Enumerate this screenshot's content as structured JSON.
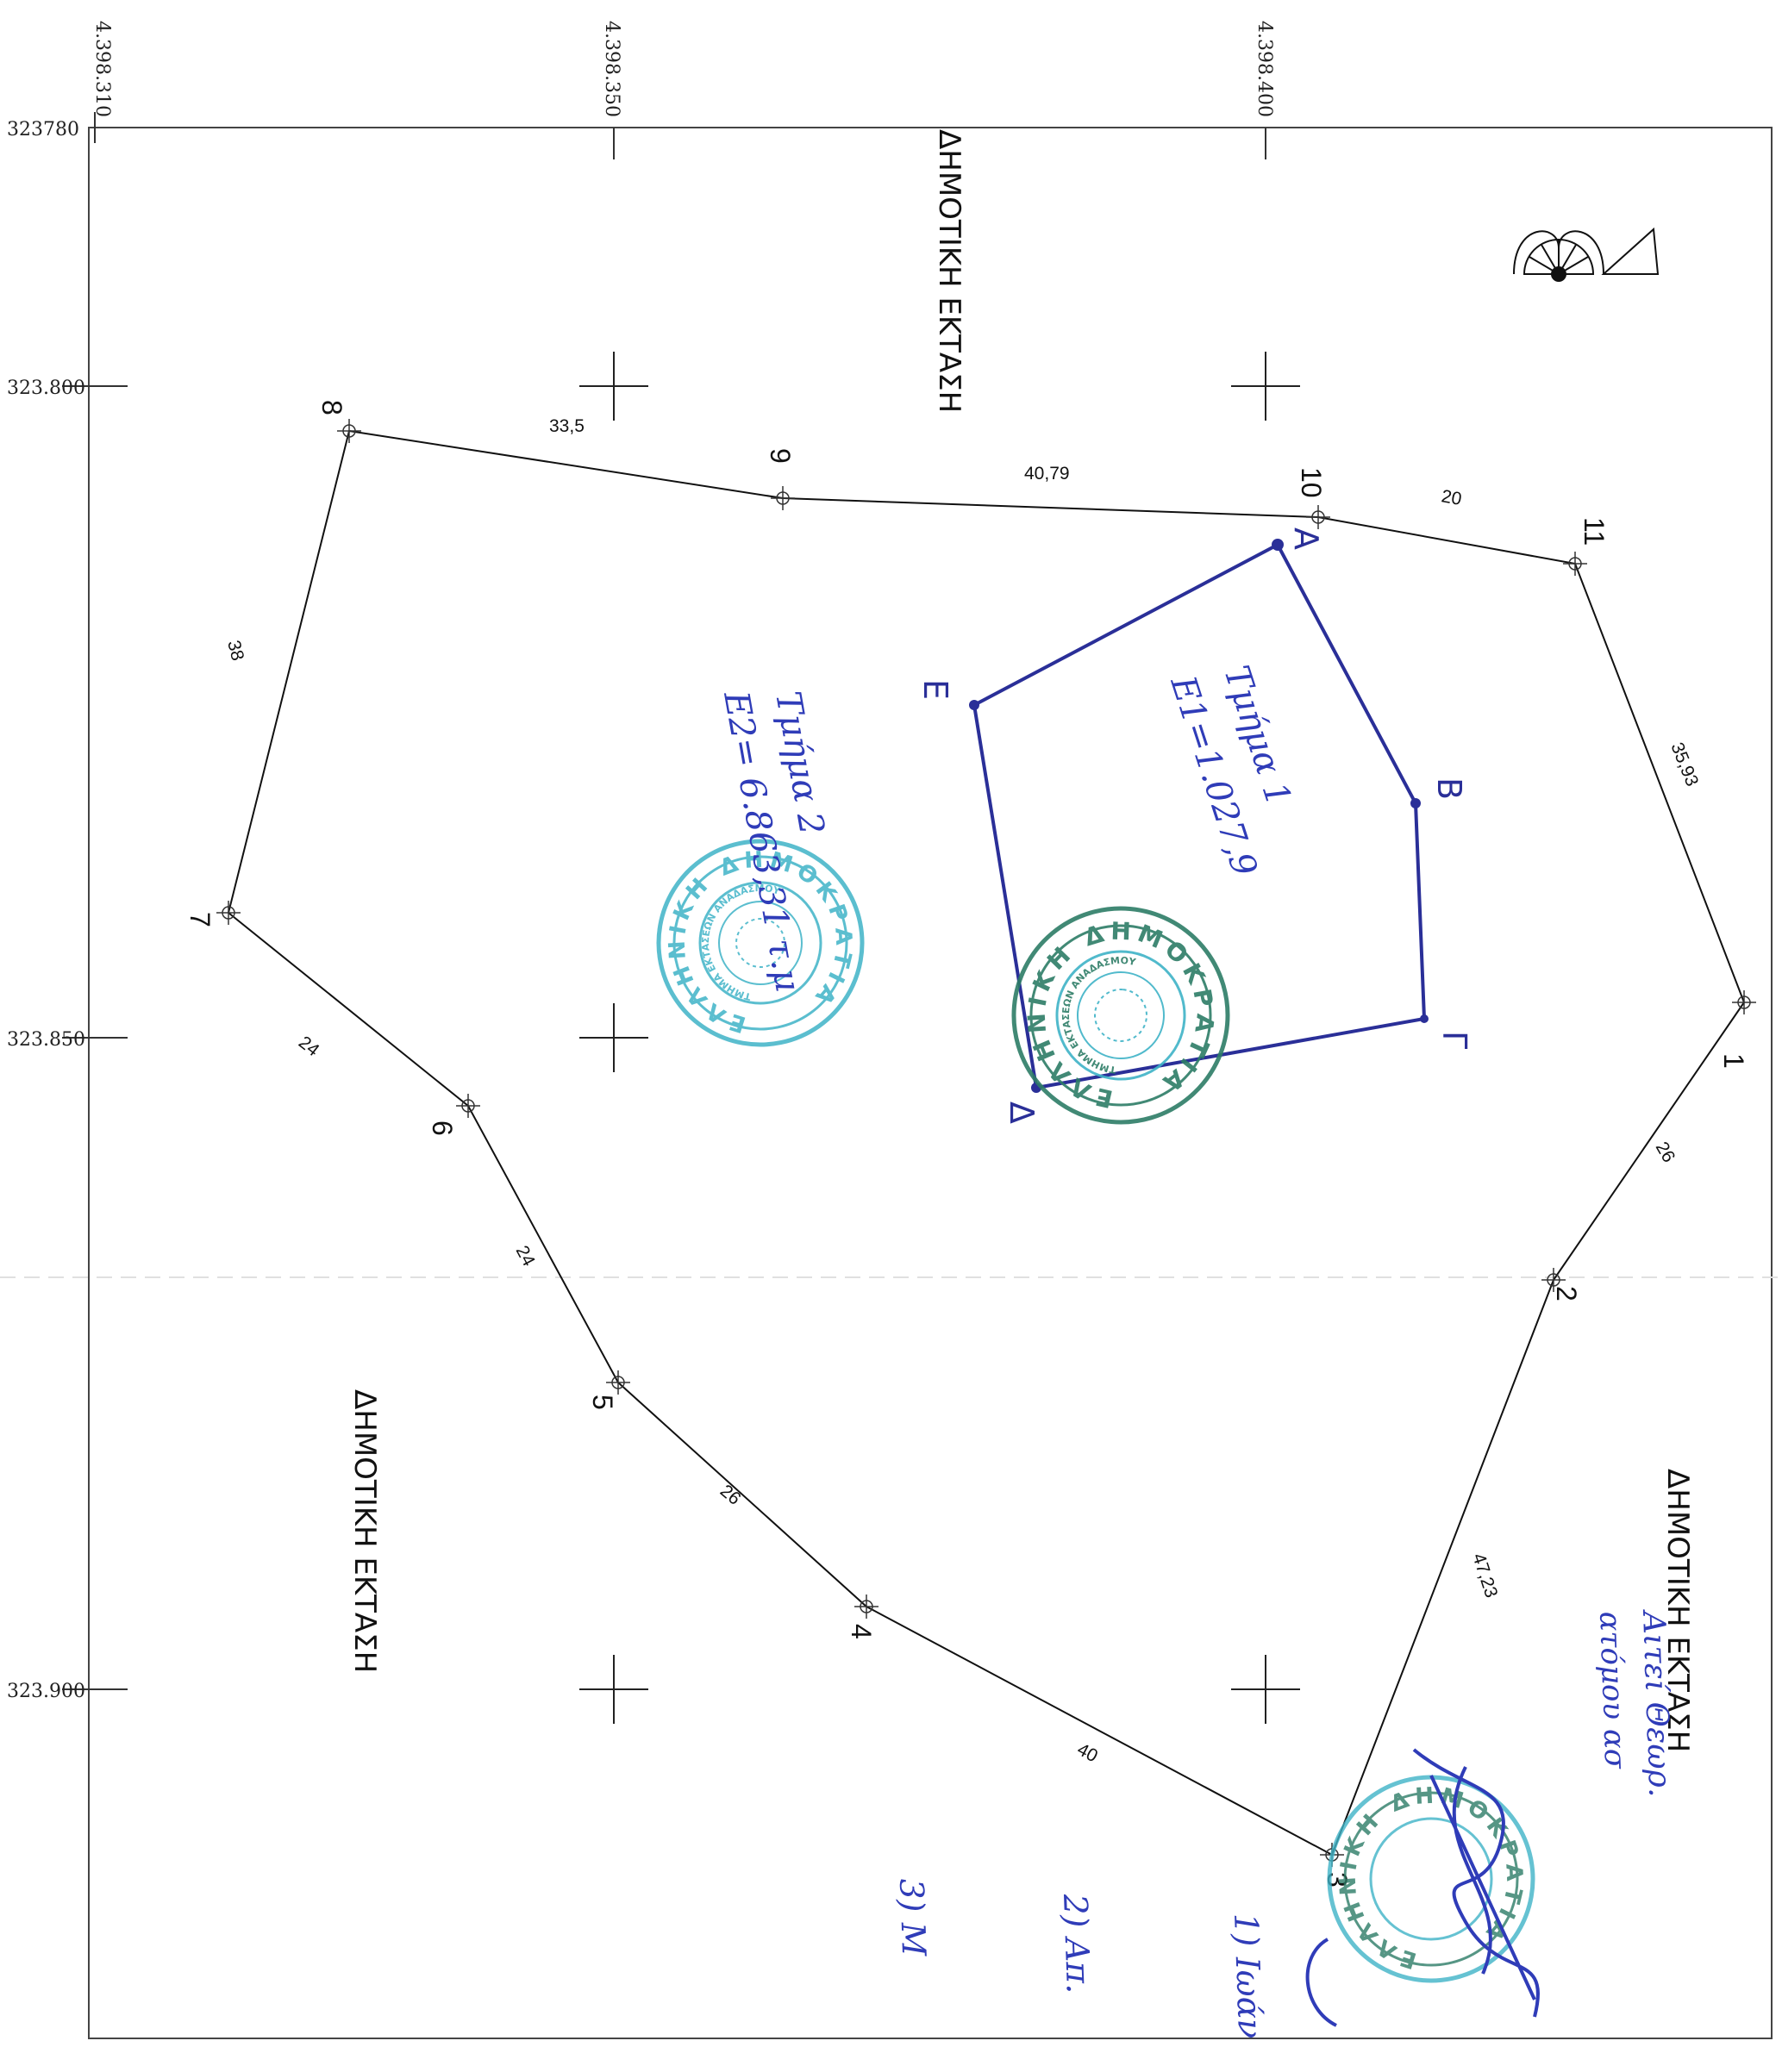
{
  "grid": {
    "northing_labels": [
      "4.398.310",
      "4.398.350",
      "4.398.400"
    ],
    "easting_labels": [
      "323780",
      "323.800",
      "323.850",
      "323.900"
    ]
  },
  "adjacent_areas": {
    "top": "ΔΗΜΟΤΙΚΗ ΕΚΤΑΣΗ",
    "bottom_left": "ΔΗΜΟΤΙΚΗ ΕΚΤΑΣΗ",
    "right": "ΔΗΜΟΤΙΚΗ ΕΚΤΑΣΗ"
  },
  "outer_parcel": {
    "vertices": [
      {
        "label": "1"
      },
      {
        "label": "2"
      },
      {
        "label": "3"
      },
      {
        "label": "4"
      },
      {
        "label": "5"
      },
      {
        "label": "6"
      },
      {
        "label": "7"
      },
      {
        "label": "8"
      },
      {
        "label": "9"
      },
      {
        "label": "10"
      },
      {
        "label": "11"
      }
    ],
    "side_lengths": [
      {
        "from": "1",
        "to": "2",
        "value": "26"
      },
      {
        "from": "2",
        "to": "3",
        "value": "47,23"
      },
      {
        "from": "3",
        "to": "4",
        "value": "40"
      },
      {
        "from": "4",
        "to": "5",
        "value": "26"
      },
      {
        "from": "5",
        "to": "6",
        "value": "24"
      },
      {
        "from": "6",
        "to": "7",
        "value": "24"
      },
      {
        "from": "7",
        "to": "8",
        "value": "38"
      },
      {
        "from": "8",
        "to": "9",
        "value": "33,5"
      },
      {
        "from": "9",
        "to": "10",
        "value": "40,79"
      },
      {
        "from": "10",
        "to": "11",
        "value": "20"
      },
      {
        "from": "11",
        "to": "1",
        "value": "35,93"
      }
    ]
  },
  "inner_parcel": {
    "color": "#2a2f98",
    "vertices": [
      {
        "label": "Α"
      },
      {
        "label": "Β"
      },
      {
        "label": "Γ"
      },
      {
        "label": "Δ"
      },
      {
        "label": "Ε"
      }
    ]
  },
  "annotations": {
    "parcel_1": {
      "line1": "Τμήμα 1",
      "line2": "Ε1=1.027,9"
    },
    "parcel_2": {
      "line1": "Τμήμα 2",
      "line2": "Ε2= 6.863,31 τ.μ"
    },
    "notes": [
      "Αιτεί Θεωρ.",
      "ατόμου ασ",
      "1) Ιωάν",
      "2) Απ.",
      "3) Μ"
    ]
  },
  "stamps": {
    "text": "ΕΛΛΗΝΙΚΗ ΔΗΜΟΚΡΑΤΙΑ",
    "inner_text": "ΤΜΗΜΑ ΕΚΤΑΣΕΩΝ ΑΝΑΔΑΣΜΟΥ",
    "color_cyan": "#3fb3c7",
    "color_green": "#2d7d67"
  },
  "colors": {
    "line": "#111111",
    "grid": "#333333",
    "ink_blue": "#2f3cb8"
  }
}
